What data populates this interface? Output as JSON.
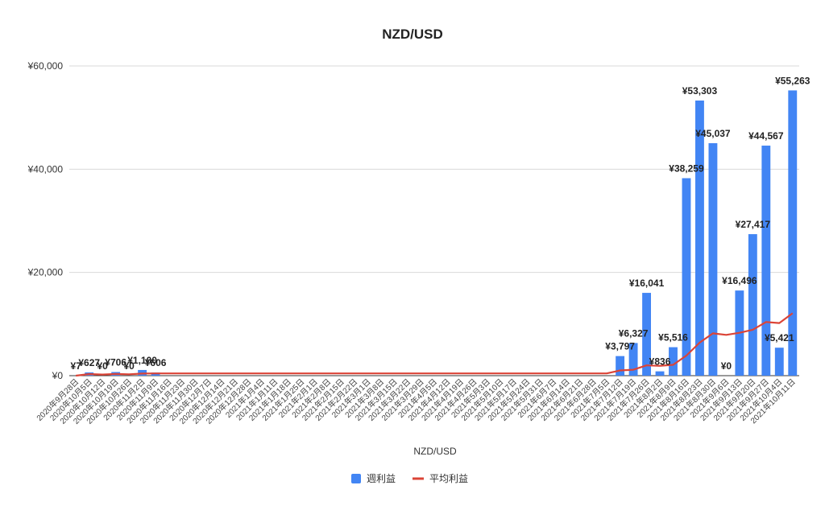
{
  "chart_data": {
    "type": "bar",
    "title": "NZD/USD",
    "xlabel": "NZD/USD",
    "ylabel": "",
    "ylim": [
      0,
      60000
    ],
    "yticks": [
      "¥0",
      "¥20,000",
      "¥40,000",
      "¥60,000"
    ],
    "ytick_values": [
      0,
      20000,
      40000,
      60000
    ],
    "grid": true,
    "legend_position": "bottom",
    "categories": [
      "2020年9月28日",
      "2020年10月5日",
      "2020年10月12日",
      "2020年10月19日",
      "2020年10月26日",
      "2020年11月2日",
      "2020年11月9日",
      "2020年11月16日",
      "2020年11月23日",
      "2020年11月30日",
      "2020年12月7日",
      "2020年12月14日",
      "2020年12月21日",
      "2020年12月28日",
      "2021年1月4日",
      "2021年1月11日",
      "2021年1月18日",
      "2021年1月25日",
      "2021年2月1日",
      "2021年2月8日",
      "2021年2月15日",
      "2021年2月22日",
      "2021年3月1日",
      "2021年3月8日",
      "2021年3月15日",
      "2021年3月22日",
      "2021年3月29日",
      "2021年4月5日",
      "2021年4月12日",
      "2021年4月19日",
      "2021年4月26日",
      "2021年5月3日",
      "2021年5月10日",
      "2021年5月17日",
      "2021年5月24日",
      "2021年5月31日",
      "2021年6月7日",
      "2021年6月14日",
      "2021年6月21日",
      "2021年6月28日",
      "2021年7月5日",
      "2021年7月12日",
      "2021年7月19日",
      "2021年7月26日",
      "2021年8月2日",
      "2021年8月9日",
      "2021年8月16日",
      "2021年8月23日",
      "2021年8月30日",
      "2021年9月6日",
      "2021年9月13日",
      "2021年9月20日",
      "2021年9月27日",
      "2021年10月4日",
      "2021年10月11日"
    ],
    "series": [
      {
        "name": "週利益",
        "kind": "bar",
        "color": "#4285F4",
        "values": [
          7,
          627,
          0,
          706,
          0,
          1100,
          606,
          0,
          0,
          0,
          0,
          0,
          0,
          0,
          0,
          0,
          0,
          0,
          0,
          0,
          0,
          0,
          0,
          0,
          0,
          0,
          0,
          0,
          0,
          0,
          0,
          0,
          0,
          0,
          0,
          0,
          0,
          0,
          0,
          0,
          0,
          3797,
          6327,
          16041,
          836,
          5516,
          38259,
          53303,
          45037,
          0,
          16496,
          27417,
          44567,
          5421,
          55263
        ],
        "labels": [
          "¥7",
          "¥627",
          "¥0",
          "¥706",
          "¥0",
          "¥1,100",
          "¥606",
          "",
          "",
          "",
          "",
          "",
          "",
          "",
          "",
          "",
          "",
          "",
          "",
          "",
          "",
          "",
          "",
          "",
          "",
          "",
          "",
          "",
          "",
          "",
          "",
          "",
          "",
          "",
          "",
          "",
          "",
          "",
          "",
          "",
          "",
          "¥3,797",
          "¥6,327",
          "¥16,041",
          "¥836",
          "¥5,516",
          "¥38,259",
          "¥53,303",
          "¥45,037",
          "¥0",
          "¥16,496",
          "¥27,417",
          "¥44,567",
          "¥5,421",
          "¥55,263"
        ]
      },
      {
        "name": "平均利益",
        "kind": "line",
        "color": "#DB4437",
        "values": [
          7,
          317,
          211,
          335,
          268,
          407,
          435,
          435,
          435,
          435,
          435,
          435,
          435,
          435,
          435,
          435,
          435,
          435,
          435,
          435,
          435,
          435,
          435,
          435,
          435,
          435,
          435,
          435,
          435,
          435,
          435,
          435,
          435,
          435,
          435,
          435,
          435,
          435,
          435,
          435,
          435,
          1020,
          1150,
          2000,
          1900,
          2100,
          3900,
          6400,
          8200,
          7900,
          8300,
          8900,
          10400,
          10200,
          12100
        ]
      }
    ]
  }
}
